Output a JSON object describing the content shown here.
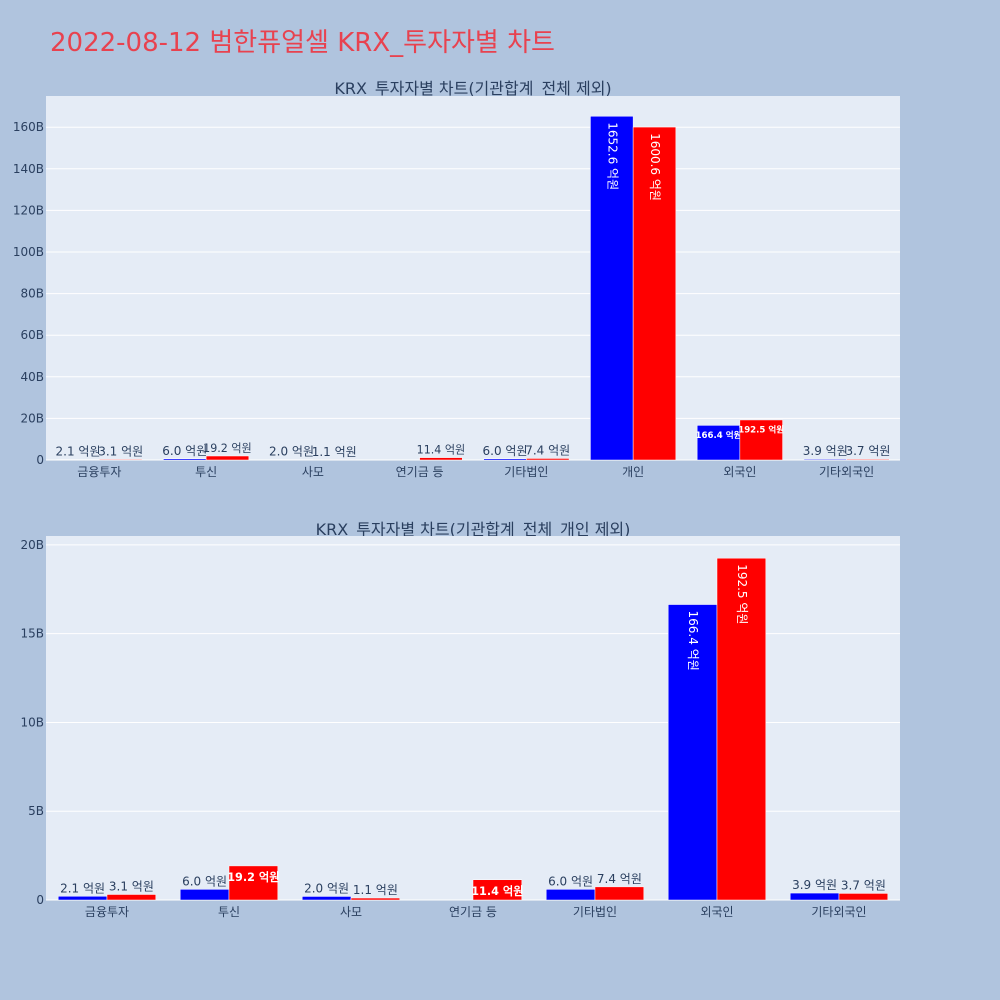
{
  "page": {
    "title": "2022-08-12 범한퓨얼셀 KRX_투자자별 차트"
  },
  "colors": {
    "background": "#b0c4de",
    "plot_bg": "#e5ecf6",
    "buy": "#0000ff",
    "sell": "#ff0000",
    "title": "#e8424f",
    "axis_text": "#2a3f5f"
  },
  "chart_data": [
    {
      "type": "bar",
      "title": "KRX_투자자별 차트(기관합계_전체 제외)",
      "categories": [
        "금융투자",
        "투신",
        "사모",
        "연기금 등",
        "기타법인",
        "개인",
        "외국인",
        "기타외국인"
      ],
      "series": [
        {
          "color": "#0000ff",
          "values": [
            0.21,
            0.6,
            0.2,
            0.0,
            0.6,
            165.26,
            16.64,
            0.39
          ],
          "labels": [
            "2.1 억원",
            "6.0 억원",
            "2.0 억원",
            "",
            "6.0 억원",
            "1652.6 억원",
            "166.4 억원",
            "3.9 억원"
          ]
        },
        {
          "color": "#ff0000",
          "values": [
            0.31,
            1.92,
            0.11,
            1.14,
            0.74,
            160.06,
            19.25,
            0.37
          ],
          "labels": [
            "3.1 억원",
            "19.2 억원",
            "1.1 억원",
            "11.4 억원",
            "7.4 억원",
            "1600.6 억원",
            "192.5 억원",
            "3.7 억원"
          ]
        }
      ],
      "ylim": [
        0,
        175
      ],
      "ytick_values": [
        0,
        20,
        40,
        60,
        80,
        100,
        120,
        140,
        160
      ],
      "ytick_labels": [
        "0",
        "20B",
        "40B",
        "60B",
        "80B",
        "100B",
        "120B",
        "140B",
        "160B"
      ],
      "grid": true
    },
    {
      "type": "bar",
      "title": "KRX_투자자별 차트(기관합계_전체_개인 제외)",
      "categories": [
        "금융투자",
        "투신",
        "사모",
        "연기금 등",
        "기타법인",
        "외국인",
        "기타외국인"
      ],
      "series": [
        {
          "color": "#0000ff",
          "values": [
            0.21,
            0.6,
            0.2,
            0.0,
            0.6,
            16.64,
            0.39
          ],
          "labels": [
            "2.1 억원",
            "6.0 억원",
            "2.0 억원",
            "",
            "6.0 억원",
            "166.4 억원",
            "3.9 억원"
          ]
        },
        {
          "color": "#ff0000",
          "values": [
            0.31,
            1.92,
            0.11,
            1.14,
            0.74,
            19.25,
            0.37
          ],
          "labels": [
            "3.1 억원",
            "19.2 억원",
            "1.1 억원",
            "11.4 억원",
            "7.4 억원",
            "192.5 억원",
            "3.7 억원"
          ]
        }
      ],
      "ylim": [
        0,
        20.5
      ],
      "ytick_values": [
        0,
        5,
        10,
        15,
        20
      ],
      "ytick_labels": [
        "0",
        "5B",
        "10B",
        "15B",
        "20B"
      ],
      "grid": true
    }
  ]
}
